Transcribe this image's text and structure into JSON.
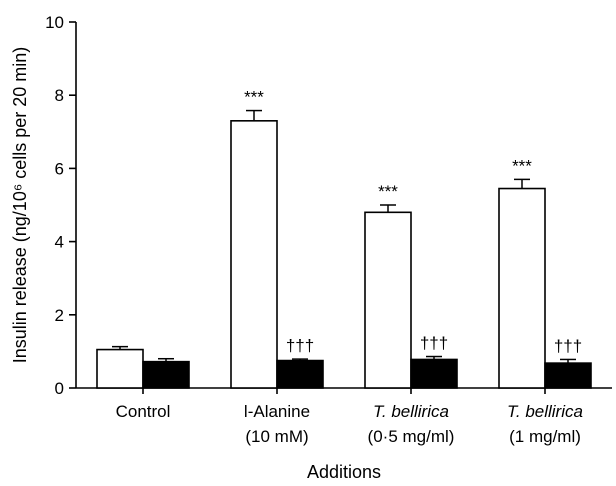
{
  "chart_data": {
    "type": "bar",
    "xlabel": "Additions",
    "ylabel": "Insulin release (ng/10⁶ cells per 20 min)",
    "ylim": [
      0,
      10
    ],
    "yticks": [
      "0",
      "2",
      "4",
      "6",
      "8",
      "10"
    ],
    "categories": [
      {
        "lines": [
          "Control"
        ],
        "italic_first": false
      },
      {
        "lines": [
          "l-Alanine",
          "(10 mM)"
        ],
        "italic_first": false
      },
      {
        "lines": [
          "T. bellirica",
          "(0·5 mg/ml)"
        ],
        "italic_first": true
      },
      {
        "lines": [
          "T. bellirica",
          "(1 mg/ml)"
        ],
        "italic_first": true
      }
    ],
    "series": [
      {
        "fill": "#ffffff",
        "values": [
          1.05,
          7.3,
          4.8,
          5.45
        ],
        "errors": [
          0.08,
          0.28,
          0.2,
          0.25
        ],
        "annotations": [
          "",
          "***",
          "***",
          "***"
        ]
      },
      {
        "fill": "#000000",
        "values": [
          0.72,
          0.75,
          0.78,
          0.68
        ],
        "errors": [
          0.08,
          0.04,
          0.08,
          0.1
        ],
        "annotations": [
          "",
          "†††",
          "†††",
          "†††"
        ]
      }
    ],
    "grid": false,
    "legend": "none"
  }
}
